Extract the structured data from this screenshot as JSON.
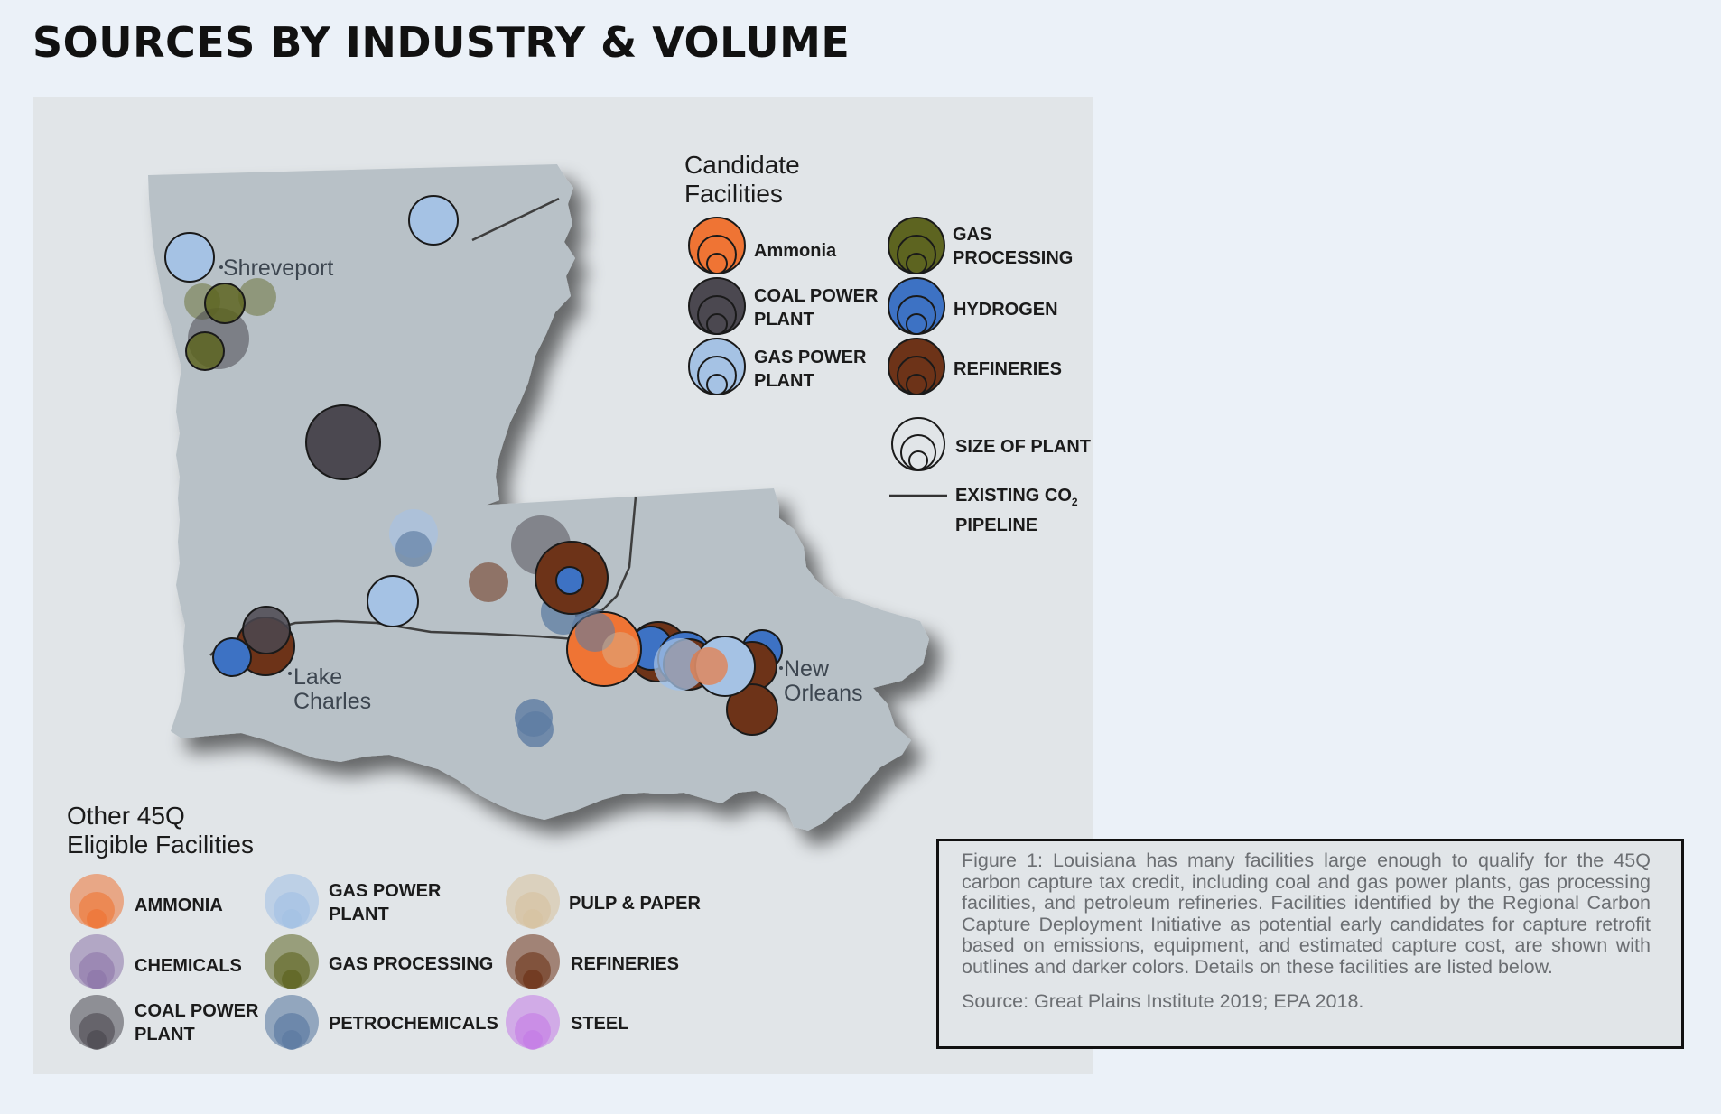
{
  "title": "SOURCES BY INDUSTRY & VOLUME",
  "map": {
    "cities": {
      "shreveport": "Shreveport",
      "lake_charles_1": "Lake",
      "lake_charles_2": "Charles",
      "new_orleans_1": "New",
      "new_orleans_2": "Orleans"
    },
    "candidate_legend": {
      "title_1": "Candidate",
      "title_2": "Facilities",
      "ammonia": "Ammonia",
      "coal_power_1": "COAL POWER",
      "coal_power_2": "PLANT",
      "gas_power_1": "GAS POWER",
      "gas_power_2": "PLANT",
      "gas_processing_1": "GAS",
      "gas_processing_2": "PROCESSING",
      "hydrogen": "HYDROGEN",
      "refineries": "REFINERIES",
      "size_of_plant": "SIZE OF PLANT",
      "pipeline_1": "EXISTING CO",
      "pipeline_sub": "2",
      "pipeline_2": "PIPELINE"
    },
    "other_legend": {
      "title_1": "Other 45Q",
      "title_2": "Eligible Facilities",
      "ammonia": "AMMONIA",
      "chemicals": "CHEMICALS",
      "coal_power_1": "COAL POWER",
      "coal_power_2": "PLANT",
      "gas_power_1": "GAS POWER",
      "gas_power_2": "PLANT",
      "gas_processing": "GAS PROCESSING",
      "petrochemicals": "PETROCHEMICALS",
      "pulp_paper": "PULP & PAPER",
      "refineries": "REFINERIES",
      "steel": "STEEL"
    },
    "colors": {
      "ammonia": "#ef7434",
      "coal": "#4b4850",
      "gas_power": "#a5c2e4",
      "gas_processing": "#5d6420",
      "hydrogen": "#3d72c4",
      "refineries": "#6d3318",
      "chemicals": "#8d75a8",
      "petrochemicals": "#5e7ca2",
      "pulp_paper": "#d7c3a2",
      "steel": "#c57ce6",
      "land": "#b8c1c7"
    }
  },
  "caption": {
    "text": "Figure 1: Louisiana has many facilities large enough to qualify for the 45Q carbon capture tax credit, including coal and gas power plants, gas processing facilities, and petroleum refineries. Facilities identified by the Regional Carbon Capture Deployment Initiative as potential early candidates for capture retrofit based on emissions, equipment, and estimated capture cost, are shown with outlines and darker colors. Details on these facilities are listed below.",
    "source": "Source: Great Plains Institute 2019; EPA 2018."
  }
}
